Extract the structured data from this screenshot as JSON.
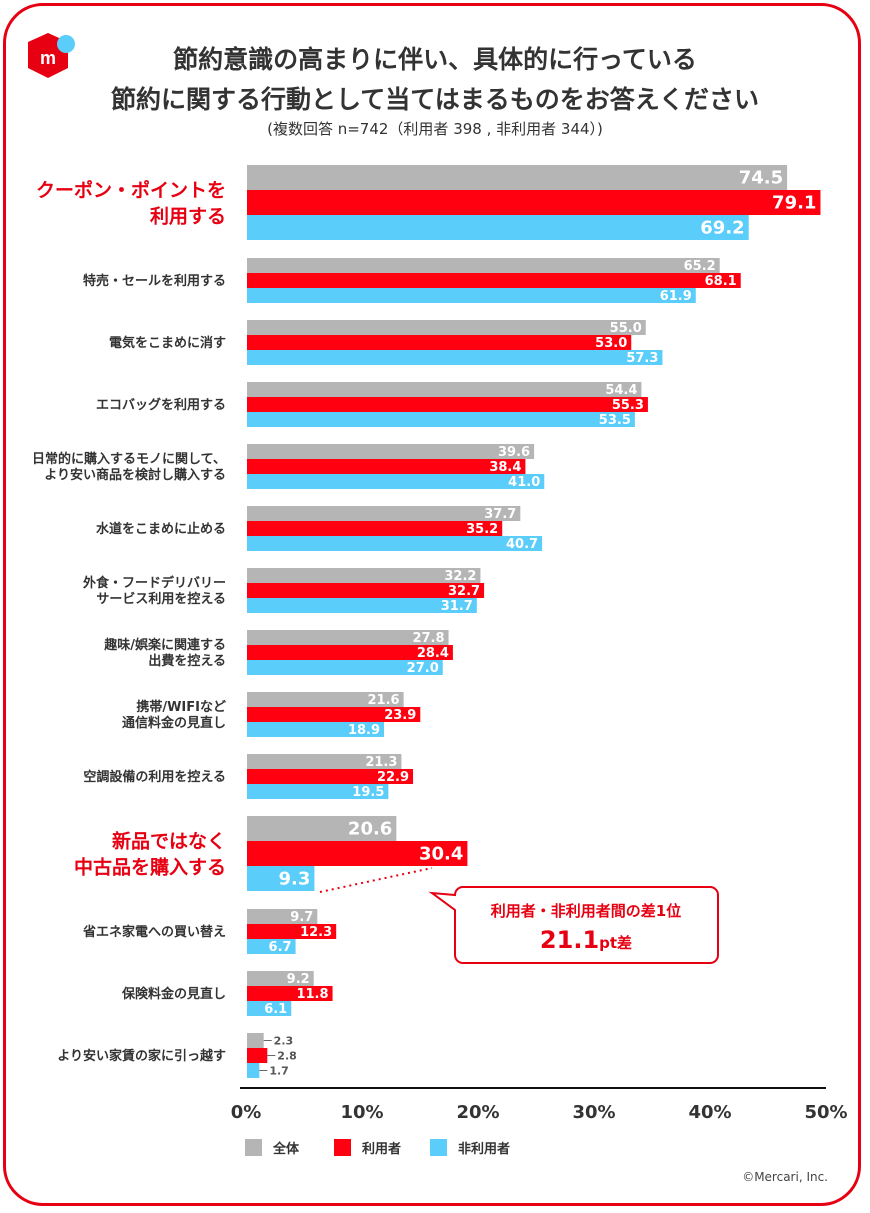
{
  "title": {
    "line1": "節約意識の高まりに伴い、具体的に行っている",
    "line2": "節約に関する行動として当てはまるものをお答えください",
    "note": "(複数回答 n=742（利用者 398 , 非利用者 344）)"
  },
  "copyright": "©Mercari, Inc.",
  "colors": {
    "all": "#b5b5b5",
    "user": "#ff0011",
    "nonuser": "#5bcdfa",
    "accent": "#e60012"
  },
  "callout": {
    "line1": "利用者・非利用者間の差1位",
    "value": "21.1",
    "unit": "pt差"
  },
  "chart_data": {
    "type": "bar",
    "orientation": "horizontal",
    "xlim": [
      0,
      50
    ],
    "ticks": [
      "0%",
      "10%",
      "20%",
      "30%",
      "40%",
      "50%"
    ],
    "legend_position": "bottom",
    "series": [
      {
        "name": "全体",
        "key": "all"
      },
      {
        "name": "利用者",
        "key": "user"
      },
      {
        "name": "非利用者",
        "key": "nonuser"
      }
    ],
    "categories": [
      {
        "label": [
          "クーポン・ポイントを",
          "利用する"
        ],
        "highlight": true,
        "values": [
          74.5,
          79.1,
          69.2
        ]
      },
      {
        "label": [
          "特売・セールを利用する"
        ],
        "values": [
          65.2,
          68.1,
          61.9
        ]
      },
      {
        "label": [
          "電気をこまめに消す"
        ],
        "values": [
          55.0,
          53.0,
          57.3
        ]
      },
      {
        "label": [
          "エコバッグを利用する"
        ],
        "values": [
          54.4,
          55.3,
          53.5
        ]
      },
      {
        "label": [
          "日常的に購入するモノに関して、",
          "より安い商品を検討し購入する"
        ],
        "values": [
          39.6,
          38.4,
          41.0
        ]
      },
      {
        "label": [
          "水道をこまめに止める"
        ],
        "values": [
          37.7,
          35.2,
          40.7
        ]
      },
      {
        "label": [
          "外食・フードデリバリー",
          "サービス利用を控える"
        ],
        "values": [
          32.2,
          32.7,
          31.7
        ]
      },
      {
        "label": [
          "趣味/娯楽に関連する",
          "出費を控える"
        ],
        "values": [
          27.8,
          28.4,
          27.0
        ]
      },
      {
        "label": [
          "携帯/WIFIなど",
          "通信料金の見直し"
        ],
        "values": [
          21.6,
          23.9,
          18.9
        ]
      },
      {
        "label": [
          "空調設備の利用を控える"
        ],
        "values": [
          21.3,
          22.9,
          19.5
        ]
      },
      {
        "label": [
          "新品ではなく",
          "中古品を購入する"
        ],
        "highlight": true,
        "values": [
          20.6,
          30.4,
          9.3
        ]
      },
      {
        "label": [
          "省エネ家電への買い替え"
        ],
        "values": [
          9.7,
          12.3,
          6.7
        ]
      },
      {
        "label": [
          "保険料金の見直し"
        ],
        "values": [
          9.2,
          11.8,
          6.1
        ]
      },
      {
        "label": [
          "より安い家賃の家に引っ越す"
        ],
        "values": [
          2.3,
          2.8,
          1.7
        ]
      }
    ]
  }
}
